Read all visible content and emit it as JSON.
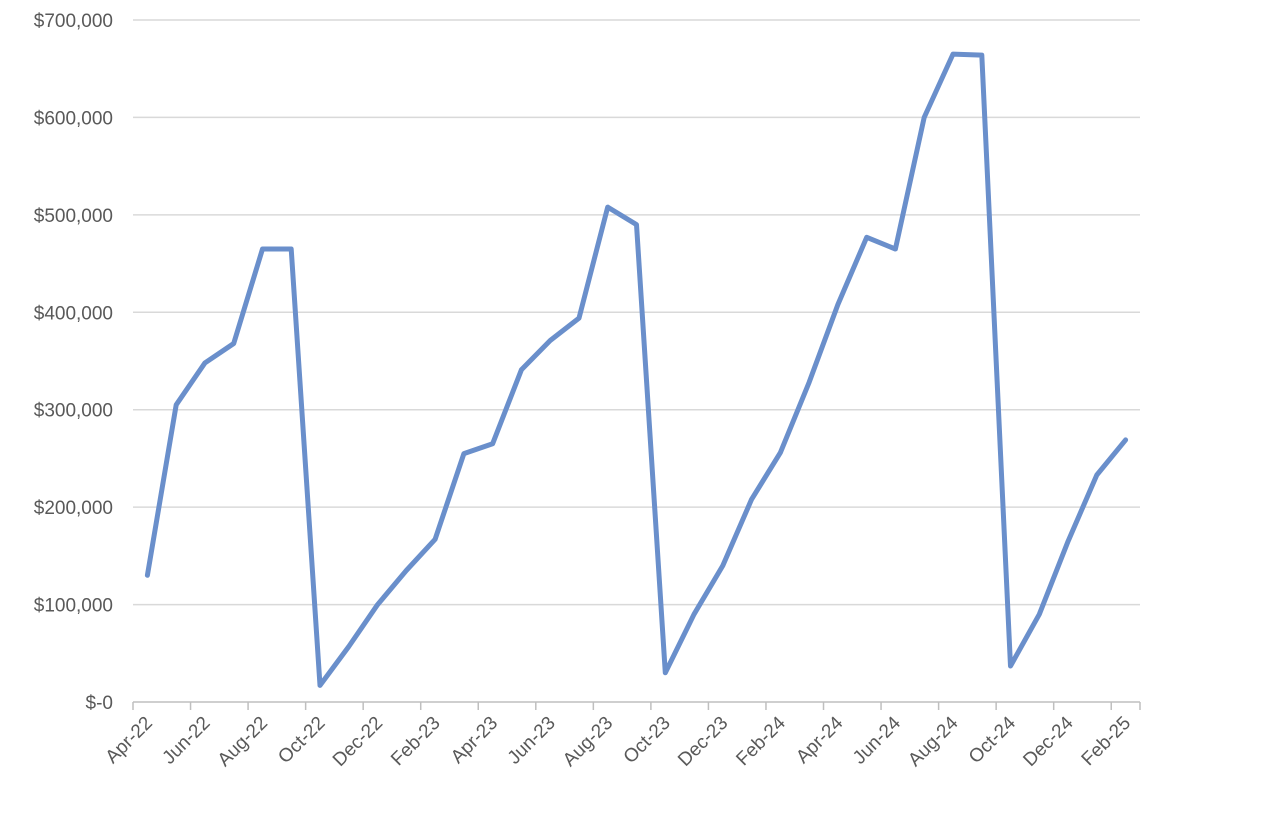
{
  "chart_data": {
    "type": "line",
    "title": "",
    "xlabel": "",
    "ylabel": "",
    "ylim": [
      0,
      700000
    ],
    "y_ticks": [
      {
        "value": 0,
        "label": "$-0"
      },
      {
        "value": 100000,
        "label": "$100,000"
      },
      {
        "value": 200000,
        "label": "$200,000"
      },
      {
        "value": 300000,
        "label": "$300,000"
      },
      {
        "value": 400000,
        "label": "$400,000"
      },
      {
        "value": 500000,
        "label": "$500,000"
      },
      {
        "value": 600000,
        "label": "$600,000"
      },
      {
        "value": 700000,
        "label": "$700,000"
      }
    ],
    "x_tick_labels": [
      "Apr-22",
      "Jun-22",
      "Aug-22",
      "Oct-22",
      "Dec-22",
      "Feb-23",
      "Apr-23",
      "Jun-23",
      "Aug-23",
      "Oct-23",
      "Dec-23",
      "Feb-24",
      "Apr-24",
      "Jun-24",
      "Aug-24",
      "Oct-24",
      "Dec-24",
      "Feb-25"
    ],
    "grid": true,
    "legend": "none",
    "line_color": "#6a8fcb",
    "categories": [
      "Apr-22",
      "May-22",
      "Jun-22",
      "Jul-22",
      "Aug-22",
      "Sep-22",
      "Oct-22",
      "Nov-22",
      "Dec-22",
      "Jan-23",
      "Feb-23",
      "Mar-23",
      "Apr-23",
      "May-23",
      "Jun-23",
      "Jul-23",
      "Aug-23",
      "Sep-23",
      "Oct-23",
      "Nov-23",
      "Dec-23",
      "Jan-24",
      "Feb-24",
      "Mar-24",
      "Apr-24",
      "May-24",
      "Jun-24",
      "Jul-24",
      "Aug-24",
      "Sep-24",
      "Oct-24",
      "Nov-24",
      "Dec-24",
      "Jan-25",
      "Feb-25"
    ],
    "series": [
      {
        "values": [
          130000,
          305000,
          348000,
          368000,
          465000,
          465000,
          17000,
          57000,
          100000,
          135000,
          167000,
          255000,
          265000,
          341000,
          371000,
          394000,
          508000,
          490000,
          30000,
          90000,
          140000,
          208000,
          256000,
          328000,
          408000,
          477000,
          465000,
          600000,
          665000,
          664000,
          37000,
          90000,
          165000,
          233000,
          269000
        ]
      }
    ]
  }
}
